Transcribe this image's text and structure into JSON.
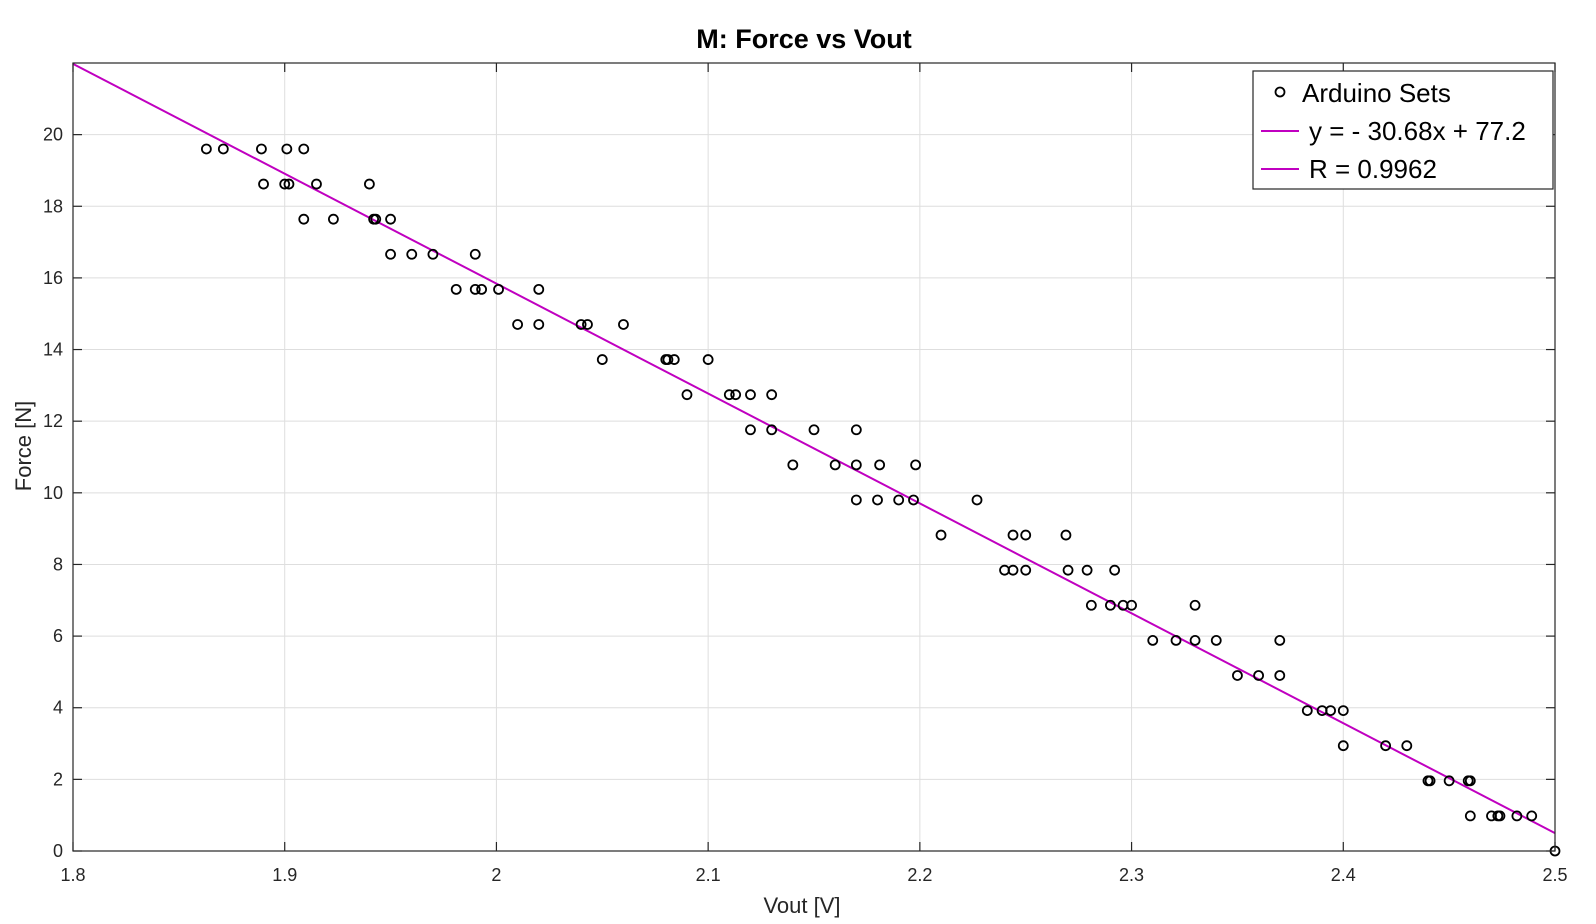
{
  "chart_data": {
    "type": "scatter",
    "title": "M: Force vs Vout",
    "xlabel": "Vout [V]",
    "ylabel": "Force [N]",
    "xlim": [
      1.8,
      2.5
    ],
    "ylim": [
      0,
      22
    ],
    "xticks": [
      "1.8",
      "1.9",
      "2",
      "2.1",
      "2.2",
      "2.3",
      "2.4",
      "2.5"
    ],
    "yticks": [
      "0",
      "2",
      "4",
      "6",
      "8",
      "10",
      "12",
      "14",
      "16",
      "18",
      "20"
    ],
    "grid": true,
    "legend_position": "top-right",
    "series": [
      {
        "name": "Arduino Sets",
        "type": "scatter",
        "color": "#000000",
        "marker": "circle",
        "points": [
          [
            1.863,
            19.6
          ],
          [
            1.871,
            19.6
          ],
          [
            1.889,
            19.6
          ],
          [
            1.901,
            19.6
          ],
          [
            1.909,
            19.6
          ],
          [
            1.89,
            18.62
          ],
          [
            1.9,
            18.62
          ],
          [
            1.902,
            18.62
          ],
          [
            1.915,
            18.62
          ],
          [
            1.94,
            18.62
          ],
          [
            1.909,
            17.64
          ],
          [
            1.923,
            17.64
          ],
          [
            1.942,
            17.64
          ],
          [
            1.943,
            17.64
          ],
          [
            1.95,
            17.64
          ],
          [
            1.95,
            16.66
          ],
          [
            1.96,
            16.66
          ],
          [
            1.97,
            16.66
          ],
          [
            1.99,
            16.66
          ],
          [
            1.981,
            15.68
          ],
          [
            1.99,
            15.68
          ],
          [
            1.993,
            15.68
          ],
          [
            2.001,
            15.68
          ],
          [
            2.02,
            15.68
          ],
          [
            2.01,
            14.7
          ],
          [
            2.02,
            14.7
          ],
          [
            2.04,
            14.7
          ],
          [
            2.043,
            14.7
          ],
          [
            2.06,
            14.7
          ],
          [
            2.05,
            13.72
          ],
          [
            2.08,
            13.72
          ],
          [
            2.081,
            13.72
          ],
          [
            2.084,
            13.72
          ],
          [
            2.1,
            13.72
          ],
          [
            2.09,
            12.74
          ],
          [
            2.11,
            12.74
          ],
          [
            2.113,
            12.74
          ],
          [
            2.12,
            12.74
          ],
          [
            2.13,
            12.74
          ],
          [
            2.12,
            11.76
          ],
          [
            2.13,
            11.76
          ],
          [
            2.15,
            11.76
          ],
          [
            2.17,
            11.76
          ],
          [
            2.14,
            10.78
          ],
          [
            2.16,
            10.78
          ],
          [
            2.17,
            10.78
          ],
          [
            2.181,
            10.78
          ],
          [
            2.198,
            10.78
          ],
          [
            2.17,
            9.8
          ],
          [
            2.18,
            9.8
          ],
          [
            2.19,
            9.8
          ],
          [
            2.197,
            9.8
          ],
          [
            2.227,
            9.8
          ],
          [
            2.21,
            8.82
          ],
          [
            2.244,
            8.82
          ],
          [
            2.25,
            8.82
          ],
          [
            2.269,
            8.82
          ],
          [
            2.24,
            7.84
          ],
          [
            2.244,
            7.84
          ],
          [
            2.25,
            7.84
          ],
          [
            2.27,
            7.84
          ],
          [
            2.279,
            7.84
          ],
          [
            2.292,
            7.84
          ],
          [
            2.281,
            6.86
          ],
          [
            2.29,
            6.86
          ],
          [
            2.296,
            6.86
          ],
          [
            2.3,
            6.86
          ],
          [
            2.33,
            6.86
          ],
          [
            2.31,
            5.88
          ],
          [
            2.321,
            5.88
          ],
          [
            2.33,
            5.88
          ],
          [
            2.34,
            5.88
          ],
          [
            2.37,
            5.88
          ],
          [
            2.35,
            4.9
          ],
          [
            2.36,
            4.9
          ],
          [
            2.37,
            4.9
          ],
          [
            2.383,
            3.92
          ],
          [
            2.39,
            3.92
          ],
          [
            2.394,
            3.92
          ],
          [
            2.4,
            3.92
          ],
          [
            2.4,
            2.94
          ],
          [
            2.42,
            2.94
          ],
          [
            2.43,
            2.94
          ],
          [
            2.44,
            1.96
          ],
          [
            2.441,
            1.96
          ],
          [
            2.45,
            1.96
          ],
          [
            2.459,
            1.96
          ],
          [
            2.46,
            1.96
          ],
          [
            2.46,
            0.98
          ],
          [
            2.47,
            0.98
          ],
          [
            2.473,
            0.98
          ],
          [
            2.474,
            0.98
          ],
          [
            2.482,
            0.98
          ],
          [
            2.489,
            0.98
          ],
          [
            2.5,
            0.0
          ]
        ]
      },
      {
        "name": "y = - 30.68x + 77.2",
        "type": "line",
        "color": "#C000C0",
        "slope": -30.68,
        "intercept": 77.2,
        "x": [
          1.8,
          2.5
        ]
      },
      {
        "name": "R = 0.9962",
        "type": "legend-entry",
        "color": "#C000C0"
      }
    ]
  }
}
